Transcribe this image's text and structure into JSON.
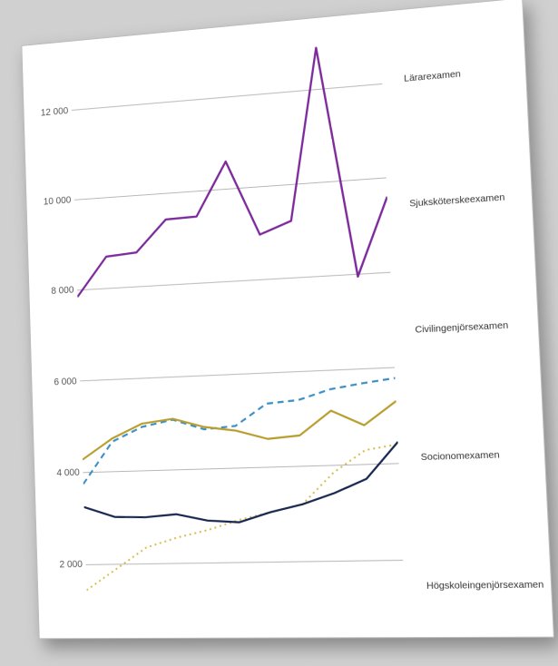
{
  "chart": {
    "type": "line",
    "background_color": "#ffffff",
    "page_background": "#d0d0d0",
    "title_fontsize": 11,
    "label_fontsize": 11,
    "grid_color": "#b7b7b7",
    "axis_color": "#888888",
    "ylim": [
      1000,
      13000
    ],
    "yticks": [
      2000,
      4000,
      6000,
      8000,
      10000,
      12000
    ],
    "ytick_labels": [
      "2 000",
      "4 000",
      "6 000",
      "8 000",
      "10 000",
      "12 000"
    ],
    "x_count": 11,
    "series": [
      {
        "name": "Lärarexamen",
        "color": "#7c2a9b",
        "style": "solid",
        "width": 2.4,
        "values": [
          7850,
          8700,
          8750,
          9430,
          9450,
          10600,
          8970,
          9220,
          12900,
          7950,
          9600
        ]
      },
      {
        "name": "Sjuksköterskeexamen",
        "color": "#3b8fc4",
        "style": "dashed",
        "width": 2.2,
        "values": [
          3750,
          4650,
          4950,
          5080,
          4850,
          4900,
          5350,
          5400,
          5600,
          5700,
          5780
        ]
      },
      {
        "name": "Civilingenjörsexamen",
        "color": "#b89d2d",
        "style": "solid",
        "width": 2.2,
        "values": [
          4280,
          4720,
          5020,
          5100,
          4900,
          4800,
          4600,
          4650,
          5150,
          4820,
          5300
        ]
      },
      {
        "name": "Socionomexamen",
        "color": "#d6bb4a",
        "style": "dotted",
        "width": 2.0,
        "values": [
          1450,
          1900,
          2350,
          2550,
          2700,
          2900,
          3050,
          3200,
          3850,
          4300,
          4400
        ]
      },
      {
        "name": "Högskoleingenjörsexamen",
        "color": "#17264e",
        "style": "solid",
        "width": 2.2,
        "values": [
          3250,
          3020,
          3000,
          3050,
          2900,
          2850,
          3050,
          3200,
          3420,
          3700,
          4450
        ]
      }
    ]
  }
}
